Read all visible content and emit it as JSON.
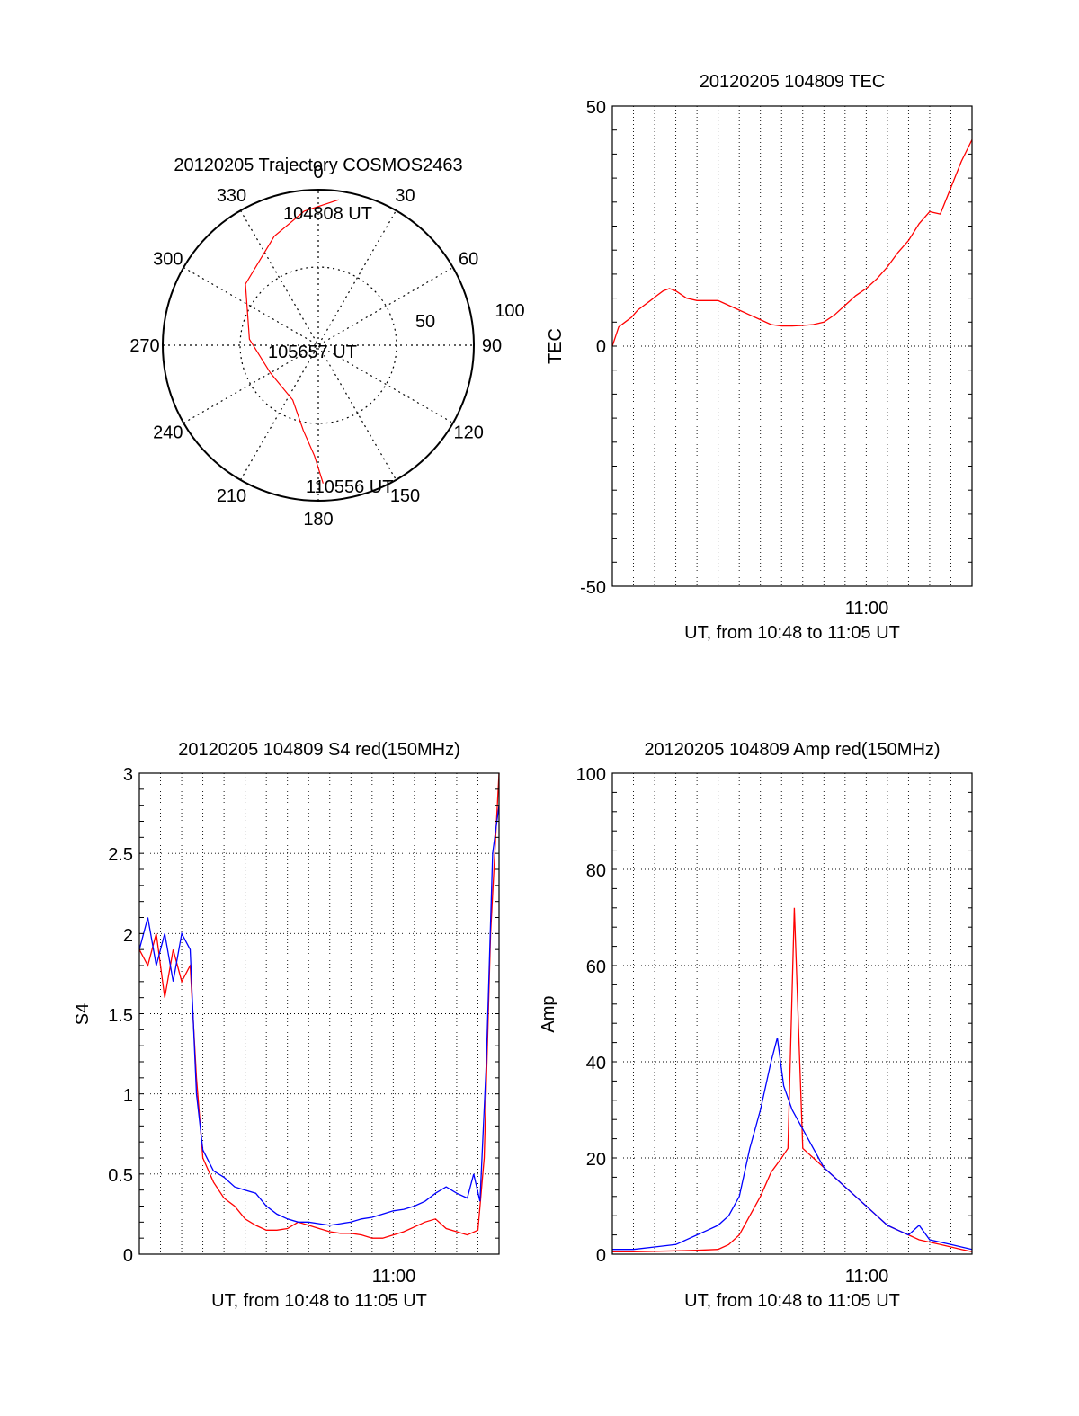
{
  "chart_data": [
    {
      "type": "polar",
      "title": "20120205 Trajectory COSMOS2463",
      "angle_labels": [
        "0",
        "30",
        "60",
        "90",
        "120",
        "150",
        "180",
        "210",
        "240",
        "270",
        "300",
        "330"
      ],
      "radius_labels": [
        "50",
        "100"
      ],
      "series": [
        {
          "color": "#ff0000",
          "points": [
            {
              "az": 8,
              "el": 5
            },
            {
              "az": 354,
              "el": 12
            },
            {
              "az": 338,
              "el": 22
            },
            {
              "az": 310,
              "el": 35
            },
            {
              "az": 275,
              "el": 50
            },
            {
              "az": 240,
              "el": 58
            },
            {
              "az": 205,
              "el": 55
            },
            {
              "az": 190,
              "el": 40
            },
            {
              "az": 182,
              "el": 26
            },
            {
              "az": 178,
              "el": 10
            }
          ]
        }
      ],
      "annotations": [
        "104808 UT",
        "105657 UT",
        "110556 UT"
      ]
    },
    {
      "type": "line",
      "title": "20120205 104809 TEC",
      "xlabel": "UT, from 10:48 to 11:05 UT",
      "ylabel": "TEC",
      "xlim": [
        0,
        17
      ],
      "ylim": [
        -50,
        50
      ],
      "yticks": [
        "-50",
        "0",
        "50"
      ],
      "xticks": [
        {
          "at": 12,
          "label": "11:00"
        }
      ],
      "grid": true,
      "series": [
        {
          "color": "#ff0000",
          "x": [
            0,
            0.3,
            0.6,
            0.9,
            1.2,
            1.5,
            1.8,
            2.1,
            2.4,
            2.7,
            3.0,
            3.5,
            4.0,
            4.5,
            5.0,
            5.5,
            6.0,
            6.5,
            7.0,
            7.5,
            8.0,
            8.5,
            9.0,
            9.5,
            10.0,
            10.5,
            11.0,
            11.5,
            12.0,
            12.5,
            13.0,
            13.5,
            14.0,
            14.5,
            15.0,
            15.5,
            16.0,
            16.5,
            17.0
          ],
          "y": [
            0,
            4,
            5,
            6,
            7.5,
            8.5,
            9.5,
            10.5,
            11.5,
            12,
            11.5,
            10,
            9.5,
            9.5,
            9.5,
            8.5,
            7.5,
            6.5,
            5.5,
            4.5,
            4.2,
            4.2,
            4.3,
            4.5,
            5.0,
            6.5,
            8.5,
            10.5,
            12,
            14,
            16.5,
            19.5,
            22,
            25.5,
            28,
            27.5,
            33,
            38.5,
            43
          ]
        }
      ]
    },
    {
      "type": "line",
      "title": "20120205 104809 S4 red(150MHz)",
      "xlabel": "UT, from 10:48 to 11:05 UT",
      "ylabel": "S4",
      "xlim": [
        0,
        17
      ],
      "ylim": [
        0,
        3
      ],
      "yticks": [
        "0",
        "0.5",
        "1",
        "1.5",
        "2",
        "2.5",
        "3"
      ],
      "xticks": [
        {
          "at": 12,
          "label": "11:00"
        }
      ],
      "grid": true,
      "series": [
        {
          "color": "#ff0000",
          "x": [
            0,
            0.4,
            0.8,
            1.2,
            1.6,
            2.0,
            2.4,
            2.7,
            3.0,
            3.5,
            4.0,
            4.5,
            5.0,
            5.5,
            6.0,
            6.5,
            7.0,
            7.5,
            8.0,
            8.5,
            9.0,
            9.5,
            10.0,
            10.5,
            11.0,
            11.5,
            12.0,
            12.5,
            13.0,
            13.5,
            14.0,
            14.5,
            15.0,
            15.5,
            16.0,
            16.3,
            16.6,
            17.0
          ],
          "y": [
            1.9,
            1.8,
            2.0,
            1.6,
            1.9,
            1.7,
            1.8,
            1.1,
            0.6,
            0.45,
            0.35,
            0.3,
            0.22,
            0.18,
            0.15,
            0.15,
            0.16,
            0.2,
            0.18,
            0.16,
            0.14,
            0.13,
            0.13,
            0.12,
            0.1,
            0.1,
            0.12,
            0.14,
            0.17,
            0.2,
            0.22,
            0.16,
            0.14,
            0.12,
            0.15,
            0.6,
            2.0,
            3.0
          ]
        },
        {
          "color": "#0000ff",
          "x": [
            0,
            0.4,
            0.8,
            1.2,
            1.6,
            2.0,
            2.4,
            2.7,
            3.0,
            3.5,
            4.0,
            4.5,
            5.0,
            5.5,
            6.0,
            6.5,
            7.0,
            7.5,
            8.0,
            8.5,
            9.0,
            9.5,
            10.0,
            10.5,
            11.0,
            11.5,
            12.0,
            12.5,
            13.0,
            13.5,
            14.0,
            14.5,
            15.0,
            15.5,
            15.8,
            16.1,
            16.4,
            16.7,
            17.0
          ],
          "y": [
            1.9,
            2.1,
            1.8,
            2.0,
            1.7,
            2.0,
            1.9,
            1.0,
            0.65,
            0.52,
            0.48,
            0.42,
            0.4,
            0.38,
            0.3,
            0.25,
            0.22,
            0.2,
            0.2,
            0.19,
            0.18,
            0.19,
            0.2,
            0.22,
            0.23,
            0.25,
            0.27,
            0.28,
            0.3,
            0.33,
            0.38,
            0.42,
            0.38,
            0.35,
            0.5,
            0.33,
            1.2,
            2.5,
            2.8
          ]
        }
      ]
    },
    {
      "type": "line",
      "title": "20120205 104809 Amp red(150MHz)",
      "xlabel": "UT, from 10:48 to 11:05 UT",
      "ylabel": "Amp",
      "xlim": [
        0,
        17
      ],
      "ylim": [
        0,
        100
      ],
      "yticks": [
        "0",
        "20",
        "40",
        "60",
        "80",
        "100"
      ],
      "xticks": [
        {
          "at": 12,
          "label": "11:00"
        }
      ],
      "grid": true,
      "series": [
        {
          "color": "#ff0000",
          "x": [
            0,
            1,
            2,
            3,
            4,
            5,
            5.5,
            6,
            6.5,
            7,
            7.5,
            8,
            8.3,
            8.6,
            9,
            9.5,
            10,
            10.5,
            11,
            11.5,
            12,
            12.5,
            13,
            13.5,
            14,
            14.5,
            15,
            15.5,
            16,
            16.5,
            17
          ],
          "y": [
            0.5,
            0.5,
            0.6,
            0.7,
            0.8,
            1,
            2,
            4,
            8,
            12,
            17,
            20,
            22,
            72,
            22,
            20,
            18,
            16,
            14,
            12,
            10,
            8,
            6,
            5,
            4,
            3,
            2.5,
            2,
            1.5,
            1,
            0.5
          ]
        },
        {
          "color": "#0000ff",
          "x": [
            0,
            1,
            2,
            3,
            4,
            4.5,
            5,
            5.5,
            6,
            6.5,
            7,
            7.5,
            7.8,
            8.1,
            8.5,
            9,
            9.5,
            10,
            10.5,
            11,
            11.5,
            12,
            12.5,
            13,
            13.5,
            14,
            14.5,
            15,
            15.5,
            16,
            16.5,
            17
          ],
          "y": [
            1,
            1,
            1.5,
            2,
            4,
            5,
            6,
            8,
            12,
            22,
            30,
            40,
            45,
            35,
            30,
            26,
            22,
            18,
            16,
            14,
            12,
            10,
            8,
            6,
            5,
            4,
            6,
            3,
            2.5,
            2,
            1.5,
            1
          ]
        }
      ]
    }
  ]
}
